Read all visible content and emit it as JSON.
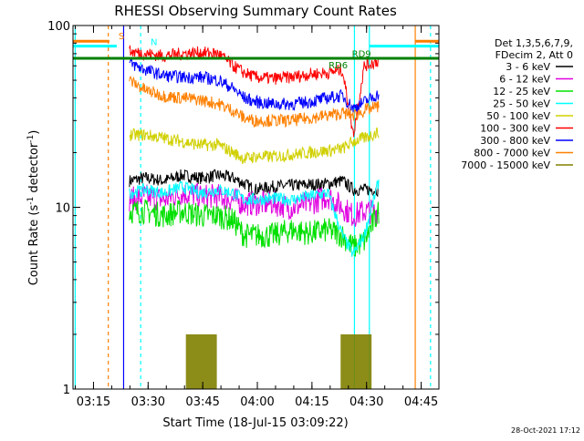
{
  "chart_data": {
    "type": "line",
    "title": "RHESSI Observing Summary Count Rates",
    "xlabel": "Start Time (18-Jul-15 03:09:22)",
    "ylabel_main": "Count Rate (s",
    "ylabel_sup": "-1",
    "ylabel_tail": " detector",
    "ylabel_close": ")",
    "timestamp": "28-Oct-2021 17:12",
    "y_scale": "log",
    "ylim": [
      1,
      100
    ],
    "xlim_minutes": [
      0,
      100.5
    ],
    "x_ticks": [
      {
        "label": "03:15",
        "m": 5.63
      },
      {
        "label": "03:30",
        "m": 20.63
      },
      {
        "label": "03:45",
        "m": 35.63
      },
      {
        "label": "04:00",
        "m": 50.63
      },
      {
        "label": "04:15",
        "m": 65.63
      },
      {
        "label": "04:30",
        "m": 80.63
      },
      {
        "label": "04:45",
        "m": 95.63
      }
    ],
    "y_ticks": [
      {
        "label": "1",
        "value": 1
      },
      {
        "label": "10",
        "value": 10
      },
      {
        "label": "100",
        "value": 100
      }
    ],
    "legend": {
      "header": [
        "Det 1,3,5,6,7,9,",
        "FDecim 2, Att 0"
      ],
      "position": "right"
    },
    "series": [
      {
        "name": "3 - 6 keV",
        "color": "#000000",
        "points": [
          [
            15.5,
            14
          ],
          [
            20,
            14.5
          ],
          [
            25,
            14
          ],
          [
            30,
            15
          ],
          [
            35,
            14.5
          ],
          [
            40,
            15
          ],
          [
            44,
            14.5
          ],
          [
            47,
            13.5
          ],
          [
            50,
            12.5
          ],
          [
            55,
            13
          ],
          [
            60,
            13.2
          ],
          [
            65,
            13.3
          ],
          [
            70,
            13.5
          ],
          [
            74,
            14
          ],
          [
            77,
            12.5
          ],
          [
            80,
            12.5
          ],
          [
            84,
            12.5
          ]
        ]
      },
      {
        "name": "6 - 12 keV",
        "color": "#e000e0",
        "points": [
          [
            15.5,
            11
          ],
          [
            20,
            11.5
          ],
          [
            25,
            11
          ],
          [
            30,
            12
          ],
          [
            35,
            11.5
          ],
          [
            40,
            11.5
          ],
          [
            44,
            11
          ],
          [
            47,
            10.5
          ],
          [
            50,
            10.5
          ],
          [
            55,
            10.5
          ],
          [
            60,
            10
          ],
          [
            65,
            10.5
          ],
          [
            70,
            11.5
          ],
          [
            74,
            10
          ],
          [
            77,
            9
          ],
          [
            80,
            9.5
          ],
          [
            84,
            9.5
          ]
        ]
      },
      {
        "name": "12 - 25 keV",
        "color": "#00e000",
        "points": [
          [
            15.5,
            9.5
          ],
          [
            20,
            9.5
          ],
          [
            25,
            9
          ],
          [
            30,
            9.5
          ],
          [
            35,
            9
          ],
          [
            40,
            9
          ],
          [
            44,
            8.5
          ],
          [
            47,
            7
          ],
          [
            50,
            7
          ],
          [
            55,
            7
          ],
          [
            60,
            7.5
          ],
          [
            65,
            7.2
          ],
          [
            70,
            7.5
          ],
          [
            74,
            7
          ],
          [
            77,
            6
          ],
          [
            80,
            6.5
          ],
          [
            84,
            9.5
          ]
        ]
      },
      {
        "name": "25 - 50 keV",
        "color": "#00ffff",
        "points": [
          [
            15.5,
            12
          ],
          [
            20,
            12.5
          ],
          [
            25,
            12
          ],
          [
            30,
            13
          ],
          [
            35,
            12
          ],
          [
            40,
            12.5
          ],
          [
            44,
            12
          ],
          [
            47,
            11
          ],
          [
            50,
            11
          ],
          [
            55,
            11.2
          ],
          [
            60,
            11
          ],
          [
            65,
            11.5
          ],
          [
            70,
            12
          ],
          [
            74,
            7
          ],
          [
            77,
            5.5
          ],
          [
            80,
            7
          ],
          [
            84,
            14
          ]
        ]
      },
      {
        "name": "50 - 100 keV",
        "color": "#d0d000",
        "points": [
          [
            15.5,
            25
          ],
          [
            20,
            25
          ],
          [
            25,
            24
          ],
          [
            30,
            23
          ],
          [
            35,
            22
          ],
          [
            40,
            22
          ],
          [
            44,
            20
          ],
          [
            47,
            18.5
          ],
          [
            50,
            19
          ],
          [
            55,
            19
          ],
          [
            60,
            19.5
          ],
          [
            65,
            20
          ],
          [
            70,
            20.5
          ],
          [
            74,
            21
          ],
          [
            77,
            23
          ],
          [
            80,
            24
          ],
          [
            84,
            26
          ]
        ]
      },
      {
        "name": "100 - 300 keV",
        "color": "#ff0000",
        "points": [
          [
            15.5,
            72
          ],
          [
            20,
            70
          ],
          [
            25,
            68
          ],
          [
            30,
            70
          ],
          [
            35,
            71
          ],
          [
            40,
            70
          ],
          [
            44,
            60
          ],
          [
            47,
            55
          ],
          [
            50,
            52
          ],
          [
            55,
            51
          ],
          [
            60,
            52
          ],
          [
            65,
            54
          ],
          [
            70,
            55
          ],
          [
            74,
            57
          ],
          [
            77,
            25
          ],
          [
            80,
            60
          ],
          [
            84,
            64
          ]
        ]
      },
      {
        "name": "300 - 800 keV",
        "color": "#0000ff",
        "points": [
          [
            15.5,
            62
          ],
          [
            20,
            57
          ],
          [
            25,
            53
          ],
          [
            30,
            52
          ],
          [
            35,
            52
          ],
          [
            40,
            50
          ],
          [
            44,
            45
          ],
          [
            47,
            40
          ],
          [
            50,
            38
          ],
          [
            55,
            37
          ],
          [
            60,
            37
          ],
          [
            65,
            38
          ],
          [
            70,
            40
          ],
          [
            74,
            41
          ],
          [
            77,
            35
          ],
          [
            80,
            38
          ],
          [
            84,
            42
          ]
        ]
      },
      {
        "name": "800 - 7000 keV",
        "color": "#ff8000",
        "points": [
          [
            15.5,
            50
          ],
          [
            20,
            44
          ],
          [
            25,
            41
          ],
          [
            30,
            40
          ],
          [
            35,
            39
          ],
          [
            40,
            37
          ],
          [
            44,
            34
          ],
          [
            47,
            31
          ],
          [
            50,
            30
          ],
          [
            55,
            30
          ],
          [
            60,
            30
          ],
          [
            65,
            31
          ],
          [
            70,
            32
          ],
          [
            74,
            33
          ],
          [
            77,
            32
          ],
          [
            80,
            34
          ],
          [
            84,
            36
          ]
        ]
      },
      {
        "name": "7000 - 15000 keV",
        "color": "#808000",
        "points": []
      }
    ],
    "annotations": [
      {
        "text": "S",
        "color": "#ff8000",
        "m": 12.5,
        "value": 84
      },
      {
        "text": "N",
        "color": "#00ffff",
        "m": 21.3,
        "value": 78
      },
      {
        "text": "RD6",
        "color": "#008000",
        "m": 70.2,
        "value": 58
      },
      {
        "text": "RD9",
        "color": "#008000",
        "m": 76.6,
        "value": 67
      }
    ]
  }
}
